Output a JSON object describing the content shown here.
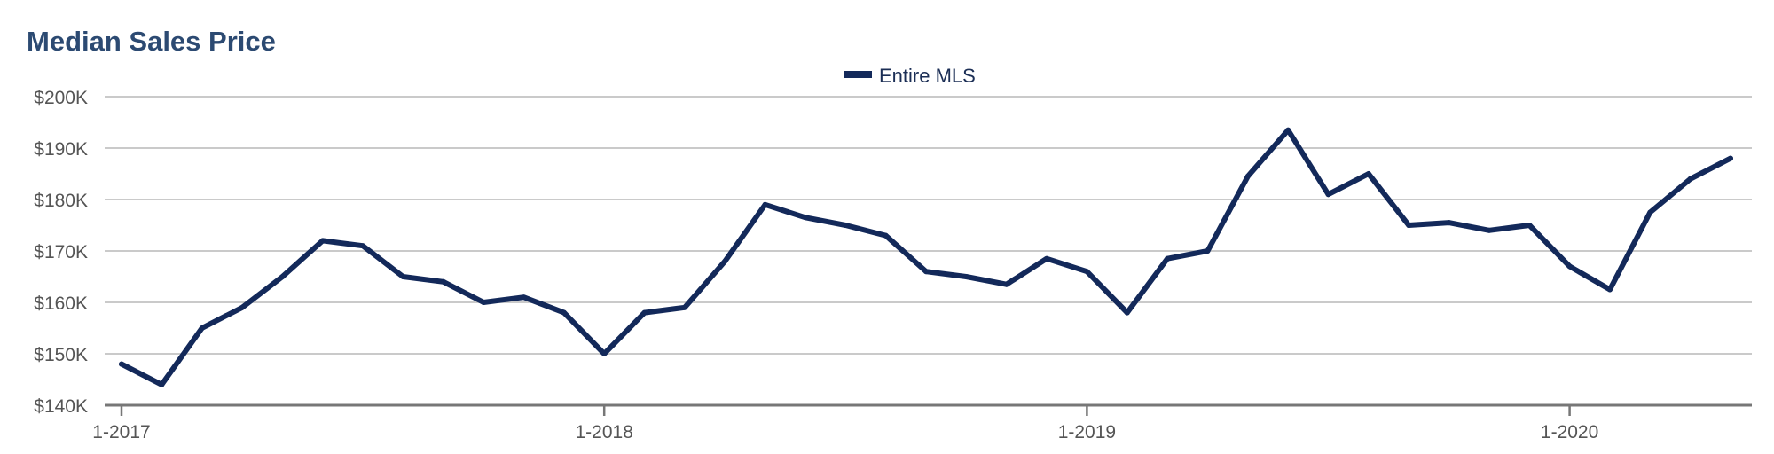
{
  "chart_data": {
    "type": "line",
    "title": "Median Sales Price",
    "xlabel": "",
    "ylabel": "",
    "legend_position": "top-center",
    "grid": true,
    "ylim": [
      140000,
      200000
    ],
    "y_ticks": [
      {
        "value": 200000,
        "label": "$200K"
      },
      {
        "value": 190000,
        "label": "$190K"
      },
      {
        "value": 180000,
        "label": "$180K"
      },
      {
        "value": 170000,
        "label": "$170K"
      },
      {
        "value": 160000,
        "label": "$160K"
      },
      {
        "value": 150000,
        "label": "$150K"
      },
      {
        "value": 140000,
        "label": "$140K"
      }
    ],
    "x_ticks": [
      {
        "index": 0,
        "label": "1-2017"
      },
      {
        "index": 12,
        "label": "1-2018"
      },
      {
        "index": 24,
        "label": "1-2019"
      },
      {
        "index": 36,
        "label": "1-2020"
      }
    ],
    "x": [
      "1-2017",
      "2-2017",
      "3-2017",
      "4-2017",
      "5-2017",
      "6-2017",
      "7-2017",
      "8-2017",
      "9-2017",
      "10-2017",
      "11-2017",
      "12-2017",
      "1-2018",
      "2-2018",
      "3-2018",
      "4-2018",
      "5-2018",
      "6-2018",
      "7-2018",
      "8-2018",
      "9-2018",
      "10-2018",
      "11-2018",
      "12-2018",
      "1-2019",
      "2-2019",
      "3-2019",
      "4-2019",
      "5-2019",
      "6-2019",
      "7-2019",
      "8-2019",
      "9-2019",
      "10-2019",
      "11-2019",
      "12-2019",
      "1-2020",
      "2-2020",
      "3-2020",
      "4-2020",
      "5-2020"
    ],
    "series": [
      {
        "name": "Entire MLS",
        "color": "#13295a",
        "values": [
          148000,
          144000,
          155000,
          159000,
          165000,
          172000,
          171000,
          165000,
          164000,
          160000,
          161000,
          158000,
          150000,
          158000,
          159000,
          168000,
          179000,
          176500,
          175000,
          173000,
          166000,
          165000,
          163500,
          168500,
          166000,
          158000,
          168500,
          170000,
          184500,
          193500,
          181000,
          185000,
          175000,
          175500,
          174000,
          175000,
          167000,
          162500,
          177500,
          184000,
          188000
        ]
      }
    ]
  },
  "colors": {
    "title": "#2c4a72",
    "gridline": "#b9b9b9",
    "axis": "#777777",
    "tick_text": "#555555"
  }
}
